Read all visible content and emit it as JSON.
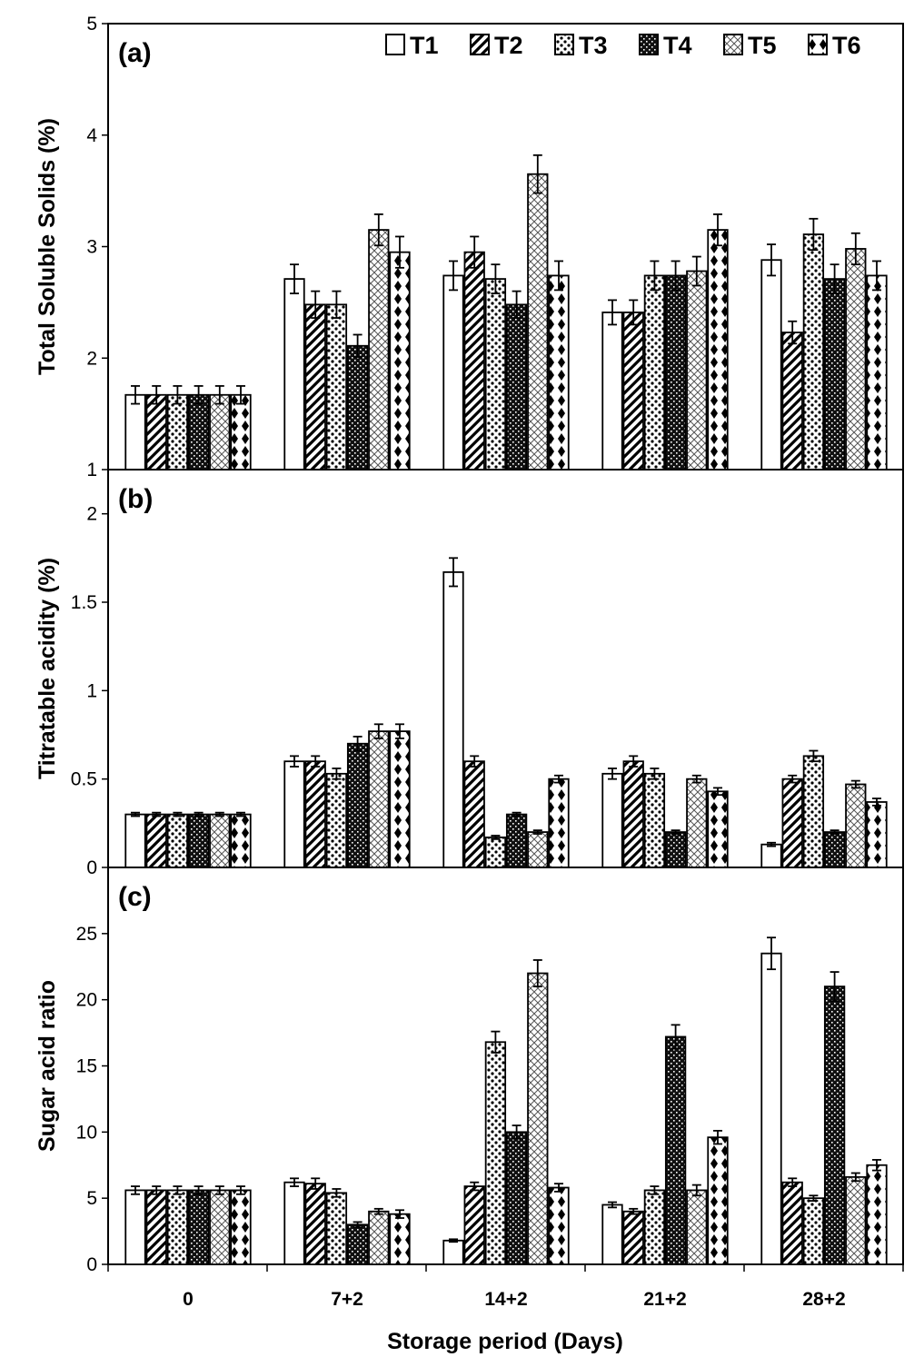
{
  "figure": {
    "xlabel": "Storage period (Days)",
    "categories": [
      "0",
      "7+2",
      "14+2",
      "21+2",
      "28+2"
    ],
    "legend": [
      {
        "name": "T1",
        "pattern": "empty"
      },
      {
        "name": "T2",
        "pattern": "diagonal-stripes"
      },
      {
        "name": "T3",
        "pattern": "dots"
      },
      {
        "name": "T4",
        "pattern": "dense-dark-checks"
      },
      {
        "name": "T5",
        "pattern": "light-crosshatch"
      },
      {
        "name": "T6",
        "pattern": "diamonds"
      }
    ]
  },
  "chart_data": [
    {
      "type": "bar",
      "panel": "(a)",
      "ylabel": "Total Soluble Solids (%)",
      "ylim": [
        1,
        5
      ],
      "yticks": [
        1,
        2,
        3,
        4,
        5
      ],
      "categories": [
        "0",
        "7+2",
        "14+2",
        "21+2",
        "28+2"
      ],
      "series": [
        {
          "name": "T1",
          "values": [
            1.67,
            2.71,
            2.74,
            2.41,
            2.88
          ],
          "errors": [
            0.08,
            0.13,
            0.13,
            0.11,
            0.14
          ]
        },
        {
          "name": "T2",
          "values": [
            1.67,
            2.48,
            2.95,
            2.41,
            2.23
          ],
          "errors": [
            0.08,
            0.12,
            0.14,
            0.11,
            0.1
          ]
        },
        {
          "name": "T3",
          "values": [
            1.67,
            2.48,
            2.71,
            2.74,
            3.11
          ],
          "errors": [
            0.08,
            0.12,
            0.13,
            0.13,
            0.14
          ]
        },
        {
          "name": "T4",
          "values": [
            1.67,
            2.11,
            2.48,
            2.74,
            2.71
          ],
          "errors": [
            0.08,
            0.1,
            0.12,
            0.13,
            0.13
          ]
        },
        {
          "name": "T5",
          "values": [
            1.67,
            3.15,
            3.65,
            2.78,
            2.98
          ],
          "errors": [
            0.08,
            0.14,
            0.17,
            0.13,
            0.14
          ]
        },
        {
          "name": "T6",
          "values": [
            1.67,
            2.95,
            2.74,
            3.15,
            2.74
          ],
          "errors": [
            0.08,
            0.14,
            0.13,
            0.14,
            0.13
          ]
        }
      ]
    },
    {
      "type": "bar",
      "panel": "(b)",
      "ylabel": "Titratable acidity (%)",
      "ylim": [
        0,
        2.25
      ],
      "yticks": [
        0,
        0.5,
        1,
        1.5,
        2
      ],
      "yticklabels": [
        "0",
        "0.5",
        "1",
        "1.5",
        "2"
      ],
      "categories": [
        "0",
        "7+2",
        "14+2",
        "21+2",
        "28+2"
      ],
      "series": [
        {
          "name": "T1",
          "values": [
            0.3,
            0.6,
            1.67,
            0.53,
            0.13
          ],
          "errors": [
            0.01,
            0.03,
            0.08,
            0.03,
            0.01
          ]
        },
        {
          "name": "T2",
          "values": [
            0.3,
            0.6,
            0.6,
            0.6,
            0.5
          ],
          "errors": [
            0.01,
            0.03,
            0.03,
            0.03,
            0.02
          ]
        },
        {
          "name": "T3",
          "values": [
            0.3,
            0.53,
            0.17,
            0.53,
            0.63
          ],
          "errors": [
            0.01,
            0.03,
            0.01,
            0.03,
            0.03
          ]
        },
        {
          "name": "T4",
          "values": [
            0.3,
            0.7,
            0.3,
            0.2,
            0.2
          ],
          "errors": [
            0.01,
            0.04,
            0.01,
            0.01,
            0.01
          ]
        },
        {
          "name": "T5",
          "values": [
            0.3,
            0.77,
            0.2,
            0.5,
            0.47
          ],
          "errors": [
            0.01,
            0.04,
            0.01,
            0.02,
            0.02
          ]
        },
        {
          "name": "T6",
          "values": [
            0.3,
            0.77,
            0.5,
            0.43,
            0.37
          ],
          "errors": [
            0.01,
            0.04,
            0.02,
            0.02,
            0.02
          ]
        }
      ]
    },
    {
      "type": "bar",
      "panel": "(c)",
      "ylabel": "Sugar acid ratio",
      "ylim": [
        0,
        30
      ],
      "yticks": [
        0,
        5,
        10,
        15,
        20,
        25
      ],
      "categories": [
        "0",
        "7+2",
        "14+2",
        "21+2",
        "28+2"
      ],
      "series": [
        {
          "name": "T1",
          "values": [
            5.6,
            6.2,
            1.8,
            4.5,
            23.5
          ],
          "errors": [
            0.3,
            0.3,
            0.1,
            0.2,
            1.2
          ]
        },
        {
          "name": "T2",
          "values": [
            5.6,
            6.1,
            5.9,
            4.0,
            6.2
          ],
          "errors": [
            0.3,
            0.4,
            0.3,
            0.2,
            0.3
          ]
        },
        {
          "name": "T3",
          "values": [
            5.6,
            5.4,
            16.8,
            5.6,
            5.0
          ],
          "errors": [
            0.3,
            0.3,
            0.8,
            0.3,
            0.2
          ]
        },
        {
          "name": "T4",
          "values": [
            5.6,
            3.0,
            10.0,
            17.2,
            21.0
          ],
          "errors": [
            0.3,
            0.2,
            0.5,
            0.9,
            1.1
          ]
        },
        {
          "name": "T5",
          "values": [
            5.6,
            4.0,
            22.0,
            5.6,
            6.6
          ],
          "errors": [
            0.3,
            0.2,
            1.0,
            0.4,
            0.3
          ]
        },
        {
          "name": "T6",
          "values": [
            5.6,
            3.8,
            5.8,
            9.6,
            7.5
          ],
          "errors": [
            0.3,
            0.3,
            0.3,
            0.5,
            0.4
          ]
        }
      ]
    }
  ]
}
